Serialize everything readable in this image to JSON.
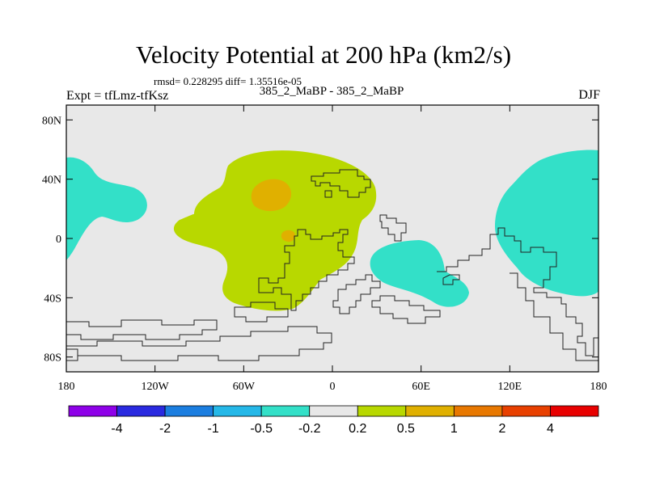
{
  "title": "Velocity Potential at 200 hPa (km2/s)",
  "stats": "rmsd= 0.228295 diff= 1.35516e-05",
  "left_label": "Expt = tfLmz-tfKsz",
  "center_label": "385_2_MaBP - 385_2_MaBP",
  "right_label": "DJF",
  "axes": {
    "x_ticks": [
      {
        "lon": -180,
        "label": "180"
      },
      {
        "lon": -120,
        "label": "120W"
      },
      {
        "lon": -60,
        "label": "60W"
      },
      {
        "lon": 0,
        "label": "0"
      },
      {
        "lon": 60,
        "label": "60E"
      },
      {
        "lon": 120,
        "label": "120E"
      },
      {
        "lon": 180,
        "label": "180"
      }
    ],
    "y_ticks": [
      {
        "lat": 80,
        "label": "80N"
      },
      {
        "lat": 40,
        "label": "40N"
      },
      {
        "lat": 0,
        "label": "0"
      },
      {
        "lat": -40,
        "label": "40S"
      },
      {
        "lat": -80,
        "label": "80S"
      }
    ],
    "lon_range": [
      -180,
      180
    ],
    "lat_range": [
      -90,
      90
    ]
  },
  "colorbar": {
    "colors": [
      "#8e00e8",
      "#2a2ae0",
      "#1b7ee0",
      "#25b8e8",
      "#33e0c8",
      "#e8e8e8",
      "#b8d800",
      "#e0b000",
      "#e87800",
      "#e84000",
      "#e80000"
    ],
    "labels": [
      "-4",
      "-2",
      "-1",
      "-0.5",
      "-0.2",
      "0.2",
      "0.5",
      "1",
      "2",
      "4"
    ]
  },
  "field": {
    "background": "#e8e8e8",
    "positive_color": "#b8d800",
    "strong_positive_color": "#e0b000",
    "negative_color": "#33e0c8"
  }
}
